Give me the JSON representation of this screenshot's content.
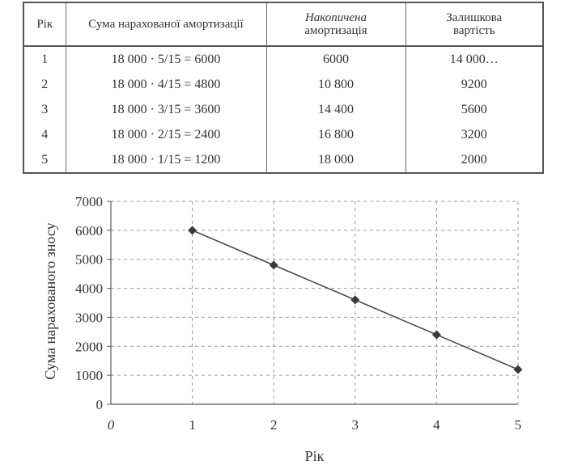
{
  "table": {
    "headers": {
      "year": "Рік",
      "calc": "Сума нарахованої амортизації",
      "accumulated_line1": "Накопичена",
      "accumulated_line2": "амортизація",
      "residual_line1": "Залишкова",
      "residual_line2": "вартість"
    },
    "rows": [
      {
        "year": "1",
        "calc": "18 000 · 5/15 = 6000",
        "accumulated": "6000",
        "residual": "14 000…"
      },
      {
        "year": "2",
        "calc": "18 000 · 4/15 = 4800",
        "accumulated": "10 800",
        "residual": "9200"
      },
      {
        "year": "3",
        "calc": "18 000 · 3/15 = 3600",
        "accumulated": "14 400",
        "residual": "5600"
      },
      {
        "year": "4",
        "calc": "18 000 · 2/15 = 2400",
        "accumulated": "16 800",
        "residual": "3200"
      },
      {
        "year": "5",
        "calc": "18 000 · 1/15 = 1200",
        "accumulated": "18 000",
        "residual": "2000"
      }
    ]
  },
  "chart_data": {
    "type": "line",
    "x": [
      1,
      2,
      3,
      4,
      5
    ],
    "series": [
      {
        "values": [
          6000,
          4800,
          3600,
          2400,
          1200
        ]
      }
    ],
    "xlabel": "Рік",
    "ylabel": "Сума нарахованого зносу",
    "xlim": [
      0,
      5
    ],
    "ylim": [
      0,
      7000
    ],
    "xticks": [
      "0",
      "1",
      "2",
      "3",
      "4",
      "5"
    ],
    "yticks": [
      "0",
      "1000",
      "2000",
      "3000",
      "4000",
      "5000",
      "6000",
      "7000"
    ],
    "grid": true,
    "marker": "diamond",
    "colors": {
      "line": "#4a4a4a",
      "marker": "#3a3a3a",
      "grid": "#9a9a9a",
      "axis": "#5a5a5a"
    }
  }
}
